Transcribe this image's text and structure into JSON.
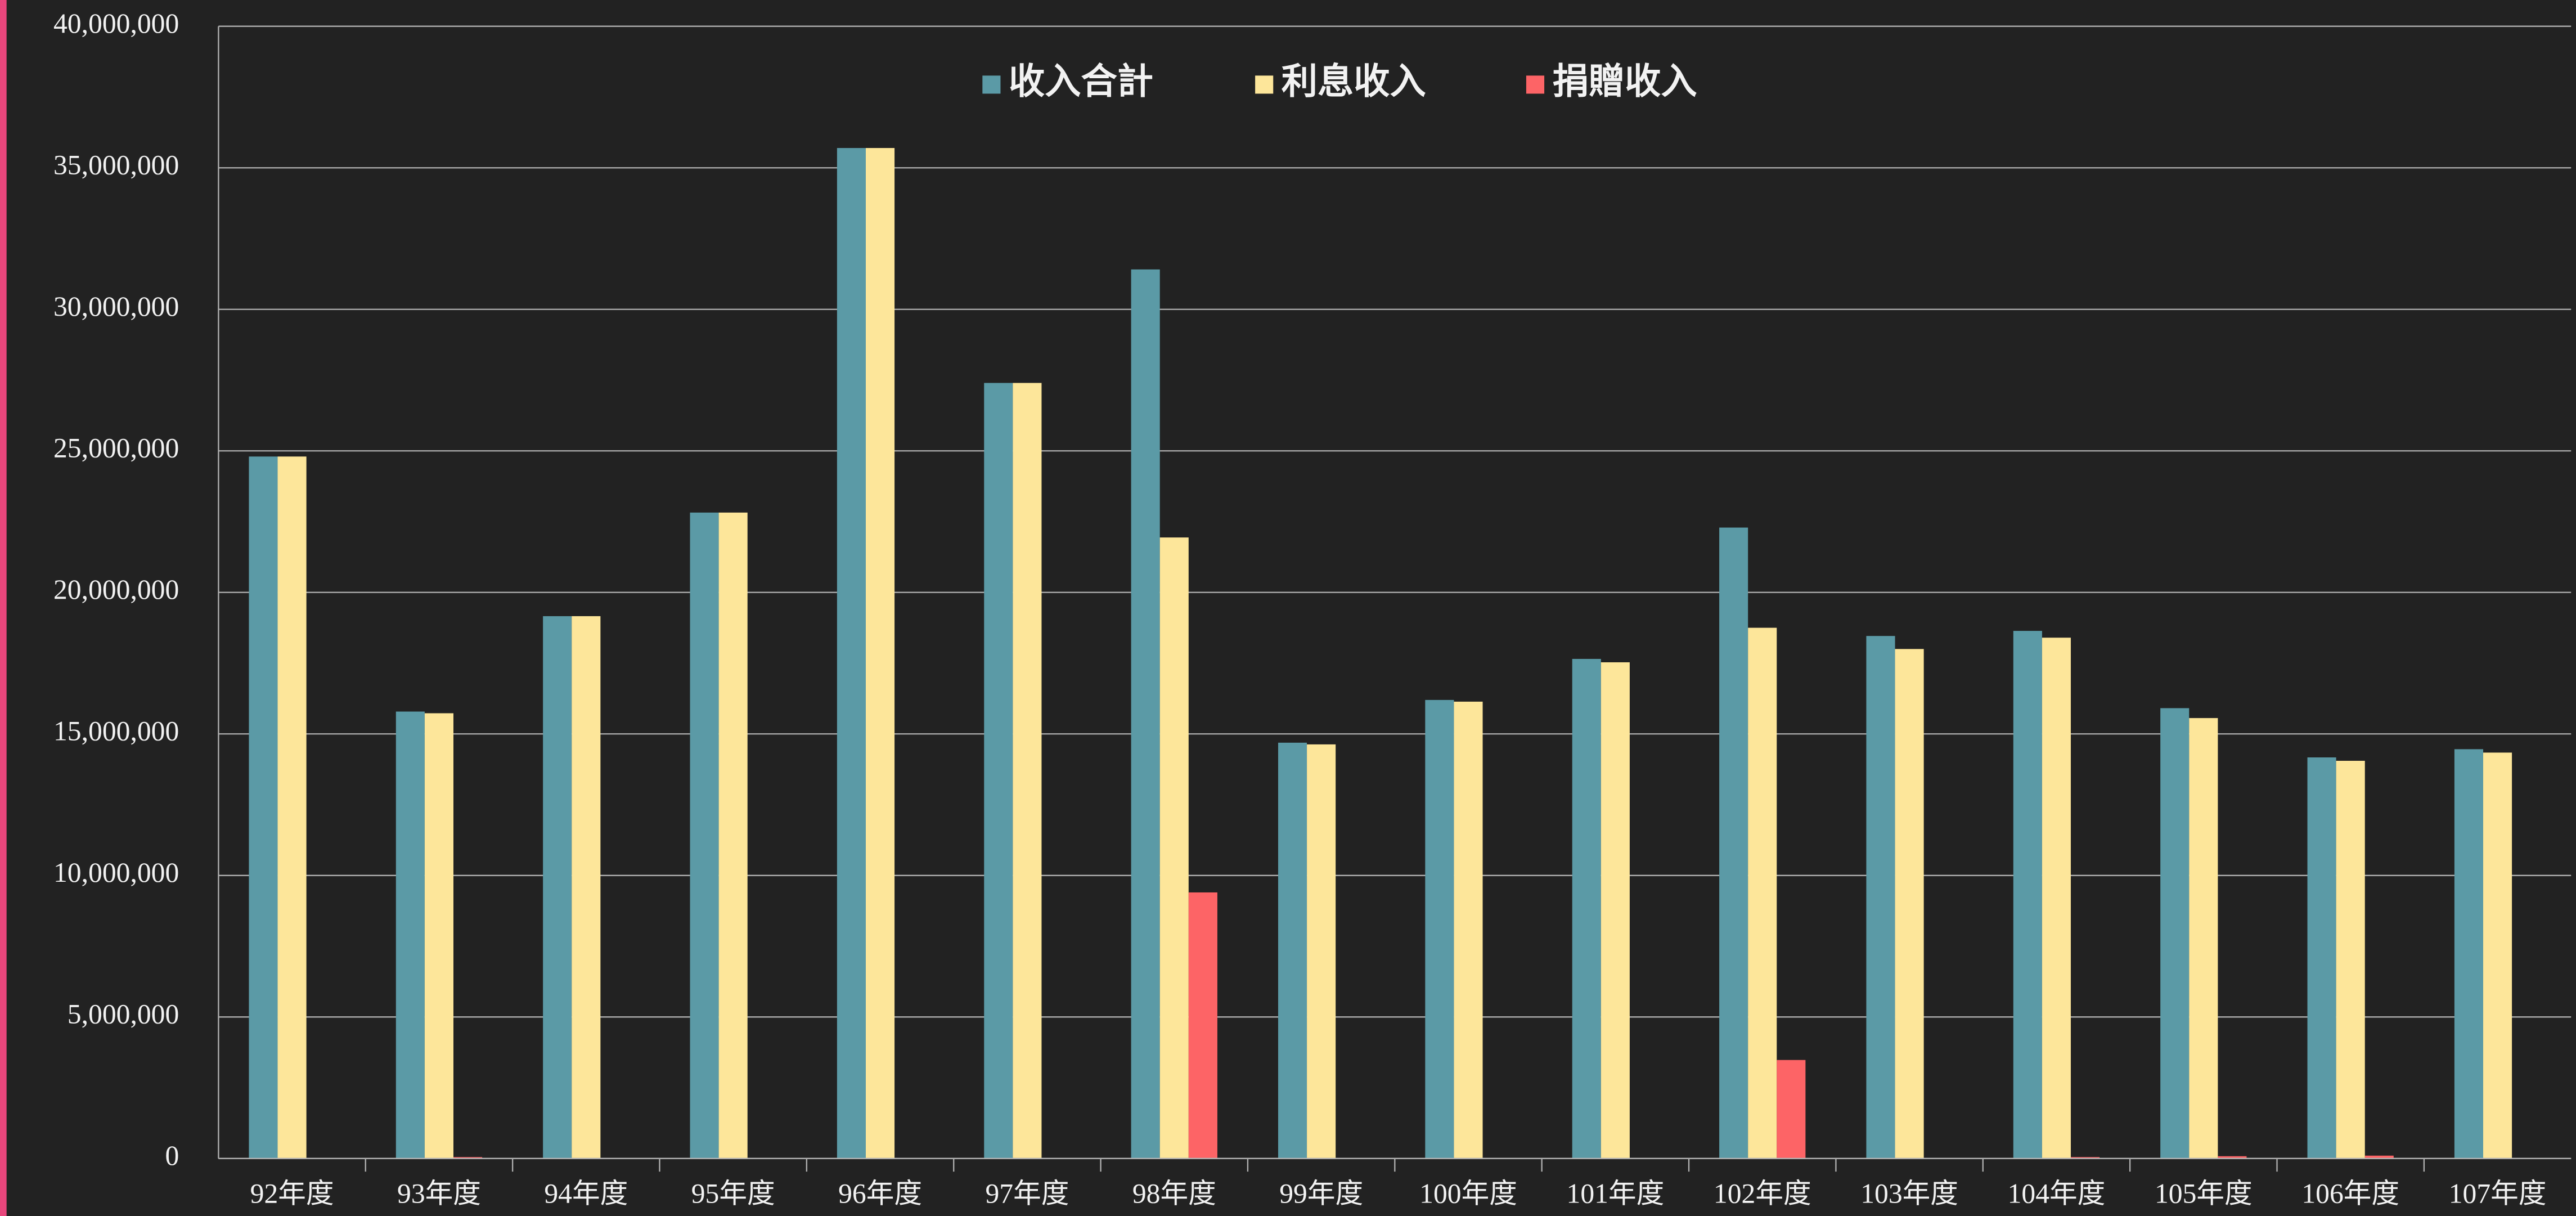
{
  "chart_data": {
    "type": "bar",
    "categories": [
      "92年度",
      "93年度",
      "94年度",
      "95年度",
      "96年度",
      "97年度",
      "98年度",
      "99年度",
      "100年度",
      "101年度",
      "102年度",
      "103年度",
      "104年度",
      "105年度",
      "106年度",
      "107年度"
    ],
    "series": [
      {
        "name": "收入合計",
        "color": "#5b9aa6",
        "values": [
          24800000,
          15790000,
          19160000,
          22820000,
          35700000,
          27400000,
          31410000,
          14690000,
          16200000,
          17650000,
          22290000,
          18460000,
          18640000,
          15910000,
          14170000,
          14460000
        ]
      },
      {
        "name": "利息收入",
        "color": "#fde69a",
        "values": [
          24800000,
          15730000,
          19160000,
          22820000,
          35700000,
          27400000,
          21940000,
          14630000,
          16140000,
          17530000,
          18750000,
          18000000,
          18400000,
          15560000,
          14050000,
          14340000
        ]
      },
      {
        "name": "捐贈收入",
        "color": "#fd6466",
        "values": [
          0,
          50000,
          0,
          0,
          0,
          0,
          9400000,
          0,
          0,
          0,
          3480000,
          0,
          50000,
          80000,
          100000,
          0
        ]
      }
    ],
    "ylim": [
      0,
      40000000
    ],
    "yticks": [
      0,
      {
        "value": 5000000,
        "label": "5,000,000"
      },
      {
        "value": 10000000,
        "label": "10,000,000"
      },
      {
        "value": 15000000,
        "label": "15,000,000"
      },
      {
        "value": 20000000,
        "label": "20,000,000"
      },
      {
        "value": 25000000,
        "label": "25,000,000"
      },
      {
        "value": 30000000,
        "label": "30,000,000"
      },
      {
        "value": 35000000,
        "label": "35,000,000"
      },
      {
        "value": 40000000,
        "label": "40,000,000"
      }
    ],
    "grid": true,
    "legend": "top"
  }
}
